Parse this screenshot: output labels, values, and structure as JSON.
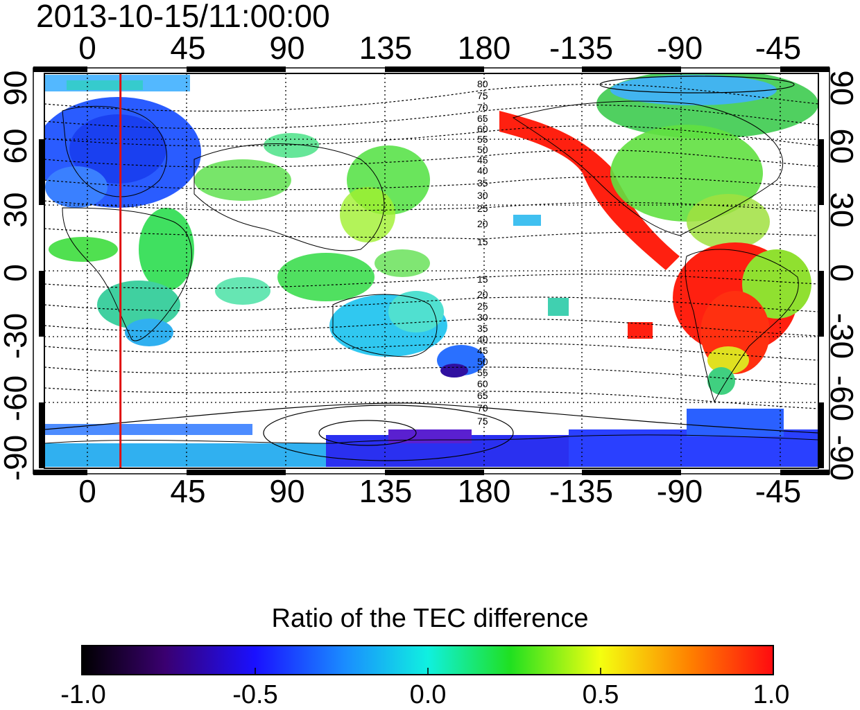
{
  "title": "2013-10-15/11:00:00",
  "x_ticks": [
    "0",
    "45",
    "90",
    "135",
    "180",
    "-135",
    "-90",
    "-45"
  ],
  "y_ticks": [
    "90",
    "60",
    "30",
    "0",
    "-30",
    "-60",
    "-90"
  ],
  "contour_labels_north": [
    "80",
    "75",
    "70",
    "65",
    "60",
    "55",
    "50",
    "45",
    "40",
    "35",
    "30",
    "25",
    "20",
    "15"
  ],
  "contour_labels_south": [
    "15",
    "20",
    "25",
    "30",
    "35",
    "40",
    "45",
    "50",
    "55",
    "60",
    "65",
    "70",
    "75"
  ],
  "colorbar": {
    "title": "Ratio of the TEC difference",
    "labels": [
      "-1.0",
      "-0.5",
      "0.0",
      "0.5",
      "1.0"
    ],
    "range": [
      -1.0,
      1.0
    ]
  },
  "marker_line_longitude": 15,
  "colors": {
    "marker_line": "#e01010",
    "frame": "#000000"
  }
}
